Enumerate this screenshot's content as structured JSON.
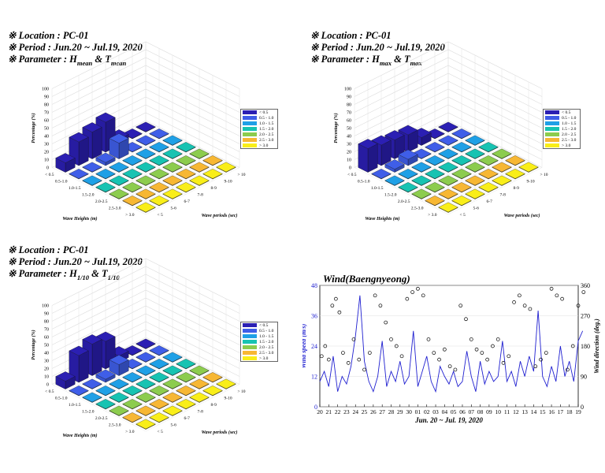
{
  "panels": [
    {
      "location": "※ Location : PC-01",
      "period": "※ Period : Jun.20 ~ Jul.19, 2020",
      "param_prefix": "※ Parameter : H",
      "param_h_sub": "mean",
      "param_mid": " & T",
      "param_t_sub": "mean"
    },
    {
      "location": "※ Location : PC-01",
      "period": "※ Period : Jun.20 ~ Jul.19, 2020",
      "param_prefix": "※ Parameter : H",
      "param_h_sub": "max",
      "param_mid": " & T",
      "param_t_sub": "max"
    },
    {
      "location": "※ Location : PC-01",
      "period": "※ Period : Jun.20 ~ Jul.19, 2020",
      "param_prefix": "※ Parameter : H",
      "param_h_sub": "1/10",
      "param_mid": " & T",
      "param_t_sub": "1/10"
    }
  ],
  "legend_entries": [
    "< 0.5",
    "0.5 - 1.0",
    "1.0 - 1.5",
    "1.5 - 2.0",
    "2.0 - 2.5",
    "2.5 - 3.0",
    "> 3.0"
  ],
  "legend_colors": [
    "#2b1fb3",
    "#3f5ee8",
    "#1fa0e6",
    "#17c3b2",
    "#8ccc4e",
    "#f7b733",
    "#f9ee19"
  ],
  "chart_data": [
    {
      "type": "bar3d",
      "title": "",
      "xlabel": "Wave Heights (m)",
      "ylabel": "Wave periods (sec)",
      "zlabel": "Percentage (%)",
      "zlim": [
        0,
        100
      ],
      "z_ticks": [
        0,
        10,
        20,
        30,
        40,
        50,
        60,
        70,
        80,
        90,
        100
      ],
      "height_categories": [
        "< 0.5",
        "0.5-1.0",
        "1.0-1.5",
        "1.5-2.0",
        "2.0-2.5",
        "2.5-3.0",
        "> 3.0"
      ],
      "period_categories": [
        "< 5",
        "5-6",
        "6-7",
        "7-8",
        "8-9",
        "9-10",
        "> 10"
      ],
      "bars": [
        {
          "h": 0,
          "p": 4,
          "value": 8
        },
        {
          "h": 0,
          "p": 3,
          "value": 38
        },
        {
          "h": 0,
          "p": 2,
          "value": 34
        },
        {
          "h": 0,
          "p": 1,
          "value": 30
        },
        {
          "h": 0,
          "p": 0,
          "value": 12
        },
        {
          "h": 1,
          "p": 3,
          "value": 20
        },
        {
          "h": 1,
          "p": 2,
          "value": 4
        }
      ]
    },
    {
      "type": "bar3d",
      "title": "",
      "xlabel": "Wave Heights (m)",
      "ylabel": "Wave periods (sec)",
      "zlabel": "Percentage (%)",
      "zlim": [
        0,
        100
      ],
      "z_ticks": [
        0,
        10,
        20,
        30,
        40,
        50,
        60,
        70,
        80,
        90,
        100
      ],
      "height_categories": [
        "< 0.5",
        "0.5-1.0",
        "1.0-1.5",
        "1.5-2.0",
        "2.0-2.5",
        "2.5-3.0",
        "> 3.0"
      ],
      "period_categories": [
        "< 5",
        "5-6",
        "6-7",
        "7-8",
        "8-9",
        "9-10",
        "> 10"
      ],
      "bars": [
        {
          "h": 0,
          "p": 4,
          "value": 10
        },
        {
          "h": 0,
          "p": 3,
          "value": 22
        },
        {
          "h": 0,
          "p": 2,
          "value": 24
        },
        {
          "h": 0,
          "p": 1,
          "value": 26
        },
        {
          "h": 0,
          "p": 0,
          "value": 30
        },
        {
          "h": 1,
          "p": 2,
          "value": 8
        },
        {
          "h": 1,
          "p": 1,
          "value": 4
        }
      ]
    },
    {
      "type": "bar3d",
      "title": "",
      "xlabel": "Wave Heights (m)",
      "ylabel": "Wave periods (sec)",
      "zlabel": "Percentage (%)",
      "zlim": [
        0,
        100
      ],
      "z_ticks": [
        0,
        10,
        20,
        30,
        40,
        50,
        60,
        70,
        80,
        90,
        100
      ],
      "height_categories": [
        "< 0.5",
        "0.5-1.0",
        "1.0-1.5",
        "1.5-2.0",
        "2.0-2.5",
        "2.5-3.0",
        "> 3.0"
      ],
      "period_categories": [
        "< 5",
        "5-6",
        "6-7",
        "7-8",
        "8-9",
        "9-10",
        "> 10"
      ],
      "bars": [
        {
          "h": 0,
          "p": 4,
          "value": 8
        },
        {
          "h": 0,
          "p": 3,
          "value": 35
        },
        {
          "h": 0,
          "p": 2,
          "value": 40
        },
        {
          "h": 0,
          "p": 1,
          "value": 34
        },
        {
          "h": 0,
          "p": 0,
          "value": 10
        },
        {
          "h": 1,
          "p": 3,
          "value": 14
        },
        {
          "h": 1,
          "p": 2,
          "value": 4
        }
      ]
    },
    {
      "type": "line+scatter",
      "title": "Wind(Baengnyeong)",
      "xlabel": "Jun. 20 ~ Jul. 19, 2020",
      "ylabel": "Wind speed (m/s)",
      "y2label": "Wind direction (deg.)",
      "ylim": [
        0,
        48
      ],
      "y_ticks": [
        0,
        12,
        24,
        36,
        48
      ],
      "y2lim": [
        0,
        360
      ],
      "y2_ticks": [
        0,
        90,
        180,
        270,
        360
      ],
      "x_tick_labels": [
        "20",
        "21",
        "22",
        "23",
        "24",
        "25",
        "26",
        "27",
        "28",
        "29",
        "30",
        "01",
        "02",
        "03",
        "04",
        "05",
        "06",
        "07",
        "08",
        "09",
        "10",
        "11",
        "12",
        "13",
        "14",
        "15",
        "16",
        "17",
        "18",
        "19"
      ],
      "series": [
        {
          "name": "",
          "kind": "line",
          "axis": "left",
          "color": "#1f1fd0",
          "x": [
            0,
            0.5,
            1,
            1.5,
            2,
            2.5,
            3,
            3.5,
            4,
            4.5,
            5,
            5.5,
            6,
            6.5,
            7,
            7.5,
            8,
            8.5,
            9,
            9.5,
            10,
            10.5,
            11,
            11.5,
            12,
            12.5,
            13,
            13.5,
            14,
            14.5,
            15,
            15.5,
            16,
            16.5,
            17,
            17.5,
            18,
            18.5,
            19,
            19.5,
            20,
            20.5,
            21,
            21.5,
            22,
            22.5,
            23,
            23.5,
            24,
            24.5,
            25,
            25.5,
            26,
            26.5,
            27,
            27.5,
            28,
            28.5,
            29,
            29.5
          ],
          "y": [
            10,
            14,
            8,
            20,
            6,
            12,
            9,
            16,
            28,
            44,
            18,
            10,
            6,
            12,
            26,
            8,
            14,
            10,
            18,
            9,
            12,
            30,
            8,
            14,
            20,
            10,
            6,
            16,
            12,
            9,
            14,
            8,
            10,
            22,
            12,
            6,
            18,
            9,
            14,
            10,
            12,
            26,
            10,
            14,
            8,
            18,
            12,
            20,
            14,
            38,
            12,
            8,
            16,
            10,
            24,
            12,
            18,
            10,
            26,
            30
          ]
        },
        {
          "name": "",
          "kind": "scatter",
          "axis": "right",
          "color": "#000000",
          "x": [
            0.2,
            0.6,
            1,
            1.4,
            1.8,
            2.2,
            2.6,
            3.2,
            3.8,
            4.4,
            5,
            5.6,
            6.2,
            6.8,
            7.4,
            8,
            8.6,
            9.2,
            9.8,
            10.4,
            11,
            11.6,
            12.2,
            12.8,
            13.4,
            14,
            14.6,
            15.2,
            15.8,
            16.4,
            17,
            17.6,
            18.2,
            18.8,
            19.4,
            20,
            20.6,
            21.2,
            21.8,
            22.4,
            23,
            23.6,
            24.2,
            24.8,
            25.4,
            26,
            26.6,
            27.2,
            27.8,
            28.4,
            29,
            29.6
          ],
          "y": [
            150,
            180,
            140,
            300,
            320,
            280,
            160,
            130,
            200,
            140,
            110,
            160,
            330,
            300,
            250,
            200,
            180,
            150,
            320,
            340,
            350,
            330,
            200,
            160,
            140,
            170,
            120,
            110,
            300,
            260,
            200,
            170,
            160,
            140,
            180,
            200,
            130,
            150,
            310,
            330,
            300,
            290,
            120,
            140,
            160,
            350,
            330,
            320,
            110,
            180,
            300,
            340
          ]
        }
      ]
    }
  ]
}
